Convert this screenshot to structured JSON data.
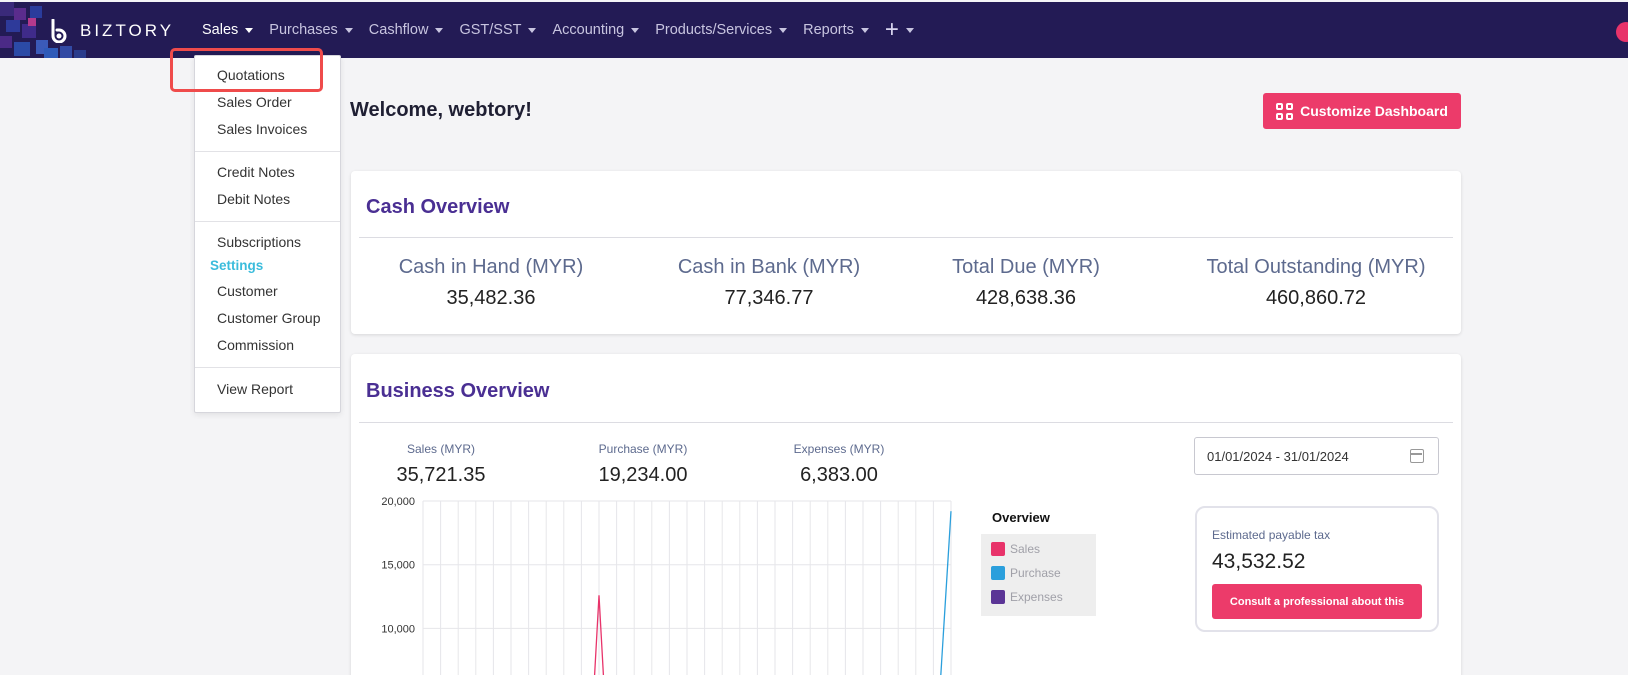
{
  "brand": {
    "name": "BIZTORY"
  },
  "nav": {
    "items": [
      {
        "label": "Sales",
        "active": true
      },
      {
        "label": "Purchases"
      },
      {
        "label": "Cashflow"
      },
      {
        "label": "GST/SST"
      },
      {
        "label": "Accounting"
      },
      {
        "label": "Products/Services"
      },
      {
        "label": "Reports"
      }
    ],
    "plus_icon": "plus-icon"
  },
  "sales_menu": {
    "quotations": "Quotations",
    "sales_order": "Sales Order",
    "sales_invoices": "Sales Invoices",
    "credit_notes": "Credit Notes",
    "debit_notes": "Debit Notes",
    "subscriptions": "Subscriptions",
    "settings_heading": "Settings",
    "customer": "Customer",
    "customer_group": "Customer Group",
    "commission": "Commission",
    "view_report": "View Report"
  },
  "welcome": "Welcome, webtory!",
  "customize_button": "Customize Dashboard",
  "cash_overview": {
    "title": "Cash Overview",
    "stats": [
      {
        "label": "Cash in Hand (MYR)",
        "value": "35,482.36"
      },
      {
        "label": "Cash in Bank (MYR)",
        "value": "77,346.77"
      },
      {
        "label": "Total Due (MYR)",
        "value": "428,638.36"
      },
      {
        "label": "Total Outstanding (MYR)",
        "value": "460,860.72"
      }
    ]
  },
  "business_overview": {
    "title": "Business Overview",
    "stats": [
      {
        "label": "Sales (MYR)",
        "value": "35,721.35"
      },
      {
        "label": "Purchase (MYR)",
        "value": "19,234.00"
      },
      {
        "label": "Expenses (MYR)",
        "value": "6,383.00"
      }
    ],
    "date_range": "01/01/2024 - 31/01/2024",
    "tax": {
      "label": "Estimated payable tax",
      "value": "43,532.52",
      "button": "Consult a professional about this"
    }
  },
  "chart_data": {
    "type": "line",
    "title": "",
    "legend_title": "Overview",
    "y_ticks": [
      "20,000",
      "15,000",
      "10,000"
    ],
    "ylim": [
      0,
      20000
    ],
    "x_count": 31,
    "series": [
      {
        "name": "Sales",
        "color": "#e8336a",
        "peak_index": 10,
        "peak_value": 12600
      },
      {
        "name": "Purchase",
        "color": "#2b9fdc",
        "peak_index": 30,
        "peak_value": 19200
      },
      {
        "name": "Expenses",
        "color": "#5b3596"
      }
    ]
  },
  "colors": {
    "nav_bg": "#231b55",
    "accent": "#ec3b6a",
    "title": "#4a2f93"
  }
}
